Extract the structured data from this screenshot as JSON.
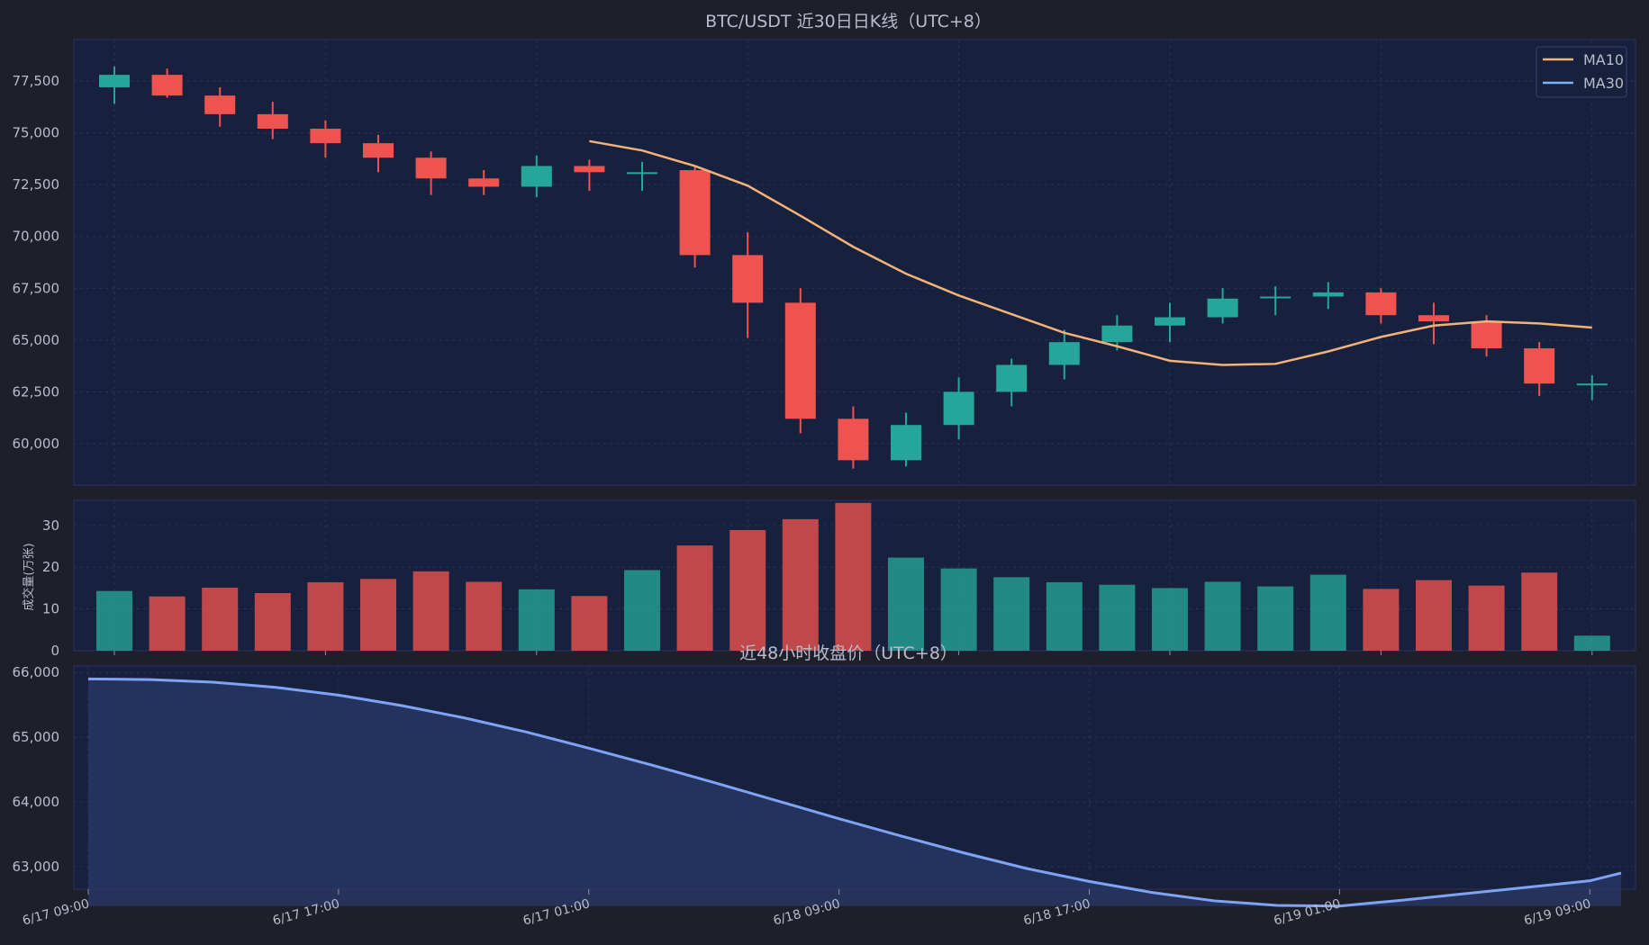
{
  "colors": {
    "up": "#26a69a",
    "down": "#ef5350",
    "ma10": "#f2b27a",
    "ma30": "#7fb2f0",
    "area_line": "#7fa4f5"
  },
  "chart_data": [
    {
      "type": "candlestick",
      "title": "BTC/USDT  近30日日K线（UTC+8）",
      "ylim": [
        58000,
        79500
      ],
      "yticks": [
        60000,
        62500,
        65000,
        67500,
        70000,
        72500,
        75000,
        77500
      ],
      "ytick_labels": [
        "60,000",
        "62,500",
        "65,000",
        "67,500",
        "70,000",
        "72,500",
        "75,000",
        "77,500"
      ],
      "grid": true,
      "legend_position": "top-right",
      "legend": [
        "MA10",
        "MA30"
      ],
      "candles": [
        {
          "o": 77200,
          "h": 78200,
          "l": 76400,
          "c": 77800
        },
        {
          "o": 77800,
          "h": 78100,
          "l": 76700,
          "c": 76800
        },
        {
          "o": 76800,
          "h": 77200,
          "l": 75300,
          "c": 75900
        },
        {
          "o": 75900,
          "h": 76500,
          "l": 74700,
          "c": 75200
        },
        {
          "o": 75200,
          "h": 75600,
          "l": 73800,
          "c": 74500
        },
        {
          "o": 74500,
          "h": 74900,
          "l": 73100,
          "c": 73800
        },
        {
          "o": 73800,
          "h": 74100,
          "l": 72000,
          "c": 72800
        },
        {
          "o": 72800,
          "h": 73200,
          "l": 72000,
          "c": 72400
        },
        {
          "o": 72400,
          "h": 73900,
          "l": 71900,
          "c": 73400
        },
        {
          "o": 73400,
          "h": 73700,
          "l": 72200,
          "c": 73100
        },
        {
          "o": 73100,
          "h": 73600,
          "l": 72200,
          "c": 73100
        },
        {
          "o": 73200,
          "h": 73400,
          "l": 68500,
          "c": 69100
        },
        {
          "o": 69100,
          "h": 70200,
          "l": 65100,
          "c": 66800
        },
        {
          "o": 66800,
          "h": 67500,
          "l": 60500,
          "c": 61200
        },
        {
          "o": 61200,
          "h": 61800,
          "l": 58800,
          "c": 59200
        },
        {
          "o": 59200,
          "h": 61500,
          "l": 58900,
          "c": 60900
        },
        {
          "o": 60900,
          "h": 63200,
          "l": 60200,
          "c": 62500
        },
        {
          "o": 62500,
          "h": 64100,
          "l": 61800,
          "c": 63800
        },
        {
          "o": 63800,
          "h": 65500,
          "l": 63100,
          "c": 64900
        },
        {
          "o": 64900,
          "h": 66200,
          "l": 64500,
          "c": 65700
        },
        {
          "o": 65700,
          "h": 66800,
          "l": 64900,
          "c": 66100
        },
        {
          "o": 66100,
          "h": 67500,
          "l": 65800,
          "c": 67000
        },
        {
          "o": 67100,
          "h": 67600,
          "l": 66200,
          "c": 67100
        },
        {
          "o": 67100,
          "h": 67800,
          "l": 66500,
          "c": 67300
        },
        {
          "o": 67300,
          "h": 67500,
          "l": 65800,
          "c": 66200
        },
        {
          "o": 66200,
          "h": 66800,
          "l": 64800,
          "c": 65900
        },
        {
          "o": 65900,
          "h": 66200,
          "l": 64200,
          "c": 64600
        },
        {
          "o": 64600,
          "h": 64900,
          "l": 62300,
          "c": 62900
        },
        {
          "o": 62900,
          "h": 63300,
          "l": 62100,
          "c": 62900
        }
      ],
      "ma10": {
        "name": "MA10",
        "start_index": 9,
        "values": [
          74600,
          74150,
          73400,
          72450,
          71000,
          69500,
          68200,
          67150,
          66250,
          65350,
          64700,
          64000,
          63800,
          63850,
          64450,
          65150,
          65700,
          65900,
          65800,
          65600
        ]
      },
      "ma30": {
        "name": "MA30",
        "values": []
      }
    },
    {
      "type": "bar",
      "ylabel": "成交量(万张)",
      "ylim": [
        0,
        36
      ],
      "yticks": [
        0,
        10,
        20,
        30
      ],
      "ytick_labels": [
        "0",
        "10",
        "20",
        "30"
      ],
      "values": [
        14.3,
        13.0,
        15.1,
        13.8,
        16.4,
        17.2,
        19.0,
        16.5,
        14.7,
        13.1,
        19.3,
        25.2,
        28.9,
        31.5,
        35.4,
        22.3,
        19.7,
        17.6,
        16.4,
        15.8,
        15.0,
        16.5,
        15.4,
        18.2,
        14.8,
        16.9,
        15.6,
        18.7,
        3.6
      ],
      "up": [
        true,
        false,
        false,
        false,
        false,
        false,
        false,
        false,
        true,
        false,
        true,
        false,
        false,
        false,
        false,
        true,
        true,
        true,
        true,
        true,
        true,
        true,
        true,
        true,
        false,
        false,
        false,
        false,
        true
      ]
    },
    {
      "type": "area",
      "title": "近48小时收盘价（UTC+8）",
      "ylim": [
        62650,
        66100
      ],
      "yticks": [
        63000,
        64000,
        65000,
        66000
      ],
      "ytick_labels": [
        "63,000",
        "64,000",
        "65,000",
        "66,000"
      ],
      "x_tick_labels": [
        "6/17 09:00",
        "6/17 17:00",
        "6/17 01:00",
        "6/18 09:00",
        "6/18 17:00",
        "6/19 01:00",
        "6/19 09:00"
      ],
      "x_hours": [
        0,
        2,
        4,
        6,
        8,
        10,
        12,
        14,
        16,
        18,
        20,
        22,
        24,
        26,
        28,
        30,
        32,
        34,
        36,
        38,
        40,
        42,
        44,
        46,
        48,
        49
      ],
      "values": [
        65900,
        65890,
        65850,
        65770,
        65650,
        65490,
        65300,
        65080,
        64830,
        64570,
        64300,
        64020,
        63740,
        63470,
        63210,
        62970,
        62770,
        62600,
        62470,
        62400,
        62390,
        62480,
        62580,
        62680,
        62780,
        62900
      ]
    }
  ]
}
